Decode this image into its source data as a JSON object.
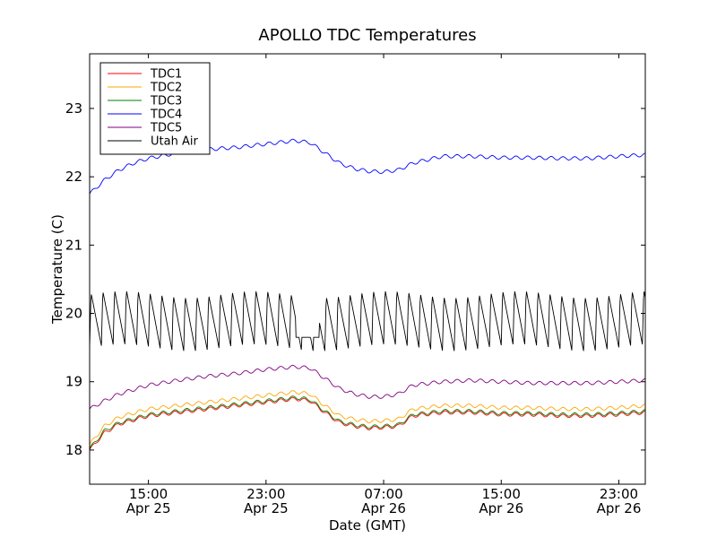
{
  "chart_data": {
    "type": "line",
    "title": "APOLLO TDC Temperatures",
    "xlabel": "Date (GMT)",
    "ylabel": "Temperature (C)",
    "x_unit": "hours since Apr 25 11:00 GMT",
    "xlim": [
      0,
      37.8
    ],
    "ylim": [
      17.5,
      23.8
    ],
    "yticks": [
      18,
      19,
      20,
      21,
      22,
      23
    ],
    "xticks": [
      {
        "x": 4,
        "time": "15:00",
        "date": "Apr 25"
      },
      {
        "x": 12,
        "time": "23:00",
        "date": "Apr 25"
      },
      {
        "x": 20,
        "time": "07:00",
        "date": "Apr 26"
      },
      {
        "x": 28,
        "time": "15:00",
        "date": "Apr 26"
      },
      {
        "x": 36,
        "time": "23:00",
        "date": "Apr 26"
      }
    ],
    "legend_location": "top-left",
    "series": [
      {
        "name": "TDC1",
        "color": "#ff0000",
        "x": [
          0,
          1,
          2,
          4,
          6,
          8,
          10,
          12,
          14,
          15,
          16,
          17,
          18,
          19,
          20,
          21,
          22,
          24,
          26,
          28,
          30,
          32,
          34,
          36,
          37.8
        ],
        "values": [
          18.0,
          18.25,
          18.38,
          18.5,
          18.55,
          18.6,
          18.65,
          18.7,
          18.75,
          18.72,
          18.55,
          18.4,
          18.35,
          18.32,
          18.33,
          18.35,
          18.5,
          18.55,
          18.55,
          18.52,
          18.52,
          18.5,
          18.5,
          18.52,
          18.55
        ]
      },
      {
        "name": "TDC2",
        "color": "#ffa500",
        "x": [
          0,
          1,
          2,
          4,
          6,
          8,
          10,
          12,
          14,
          15,
          16,
          17,
          18,
          19,
          20,
          21,
          22,
          24,
          26,
          28,
          30,
          32,
          34,
          36,
          37.8
        ],
        "values": [
          18.08,
          18.35,
          18.48,
          18.6,
          18.65,
          18.7,
          18.75,
          18.8,
          18.85,
          18.82,
          18.65,
          18.5,
          18.45,
          18.42,
          18.43,
          18.45,
          18.6,
          18.65,
          18.65,
          18.62,
          18.62,
          18.6,
          18.6,
          18.62,
          18.65
        ]
      },
      {
        "name": "TDC3",
        "color": "#008000",
        "x": [
          0,
          1,
          2,
          4,
          6,
          8,
          10,
          12,
          14,
          15,
          16,
          17,
          18,
          19,
          20,
          21,
          22,
          24,
          26,
          28,
          30,
          32,
          34,
          36,
          37.8
        ],
        "values": [
          18.02,
          18.28,
          18.4,
          18.52,
          18.57,
          18.62,
          18.67,
          18.72,
          18.77,
          18.74,
          18.57,
          18.42,
          18.37,
          18.34,
          18.35,
          18.37,
          18.52,
          18.57,
          18.57,
          18.54,
          18.54,
          18.52,
          18.52,
          18.54,
          18.57
        ]
      },
      {
        "name": "TDC4",
        "color": "#0000ff",
        "x": [
          0,
          1,
          2,
          3,
          4,
          6,
          8,
          10,
          12,
          14,
          15,
          16,
          17,
          18,
          19,
          20,
          21,
          22,
          24,
          26,
          28,
          30,
          32,
          34,
          36,
          37.8
        ],
        "values": [
          21.75,
          21.95,
          22.1,
          22.2,
          22.27,
          22.35,
          22.4,
          22.43,
          22.48,
          22.53,
          22.5,
          22.35,
          22.2,
          22.12,
          22.08,
          22.07,
          22.1,
          22.2,
          22.3,
          22.3,
          22.28,
          22.28,
          22.27,
          22.27,
          22.3,
          22.32
        ]
      },
      {
        "name": "TDC5",
        "color": "#800080",
        "x": [
          0,
          1,
          2,
          4,
          6,
          8,
          10,
          12,
          14,
          15,
          16,
          17,
          18,
          19,
          20,
          21,
          22,
          24,
          26,
          28,
          30,
          32,
          34,
          36,
          37.8
        ],
        "values": [
          18.6,
          18.72,
          18.82,
          18.95,
          19.02,
          19.08,
          19.12,
          19.18,
          19.22,
          19.2,
          19.05,
          18.9,
          18.82,
          18.78,
          18.78,
          18.82,
          18.95,
          19.0,
          19.02,
          19.0,
          18.98,
          18.98,
          18.98,
          19.0,
          19.02
        ]
      },
      {
        "name": "Utah Air",
        "color": "#000000",
        "cycles": {
          "start": 0,
          "end": 37.8,
          "cycle_hours": 0.8,
          "low": 19.5,
          "peak": 20.3,
          "gap_at": 14.8,
          "gap_low": 19.45
        }
      }
    ]
  }
}
